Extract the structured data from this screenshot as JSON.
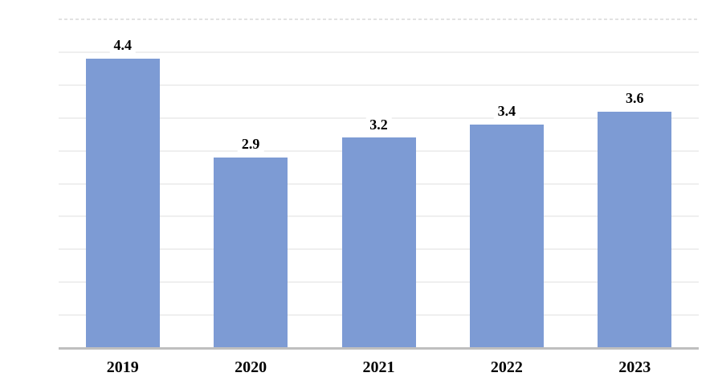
{
  "chart_data": {
    "type": "bar",
    "title": "",
    "xlabel": "",
    "ylabel": "",
    "categories": [
      "2019",
      "2020",
      "2021",
      "2022",
      "2023"
    ],
    "values": [
      4.4,
      2.9,
      3.2,
      3.4,
      3.6
    ],
    "data_labels": [
      "4.4",
      "2.9",
      "3.2",
      "3.4",
      "3.6"
    ],
    "ylim": [
      0,
      5
    ],
    "gridline_step": 0.5,
    "grid": "horizontal",
    "top_gridline_style": "dashed",
    "legend": "none",
    "y_axis_tick_labels_visible": false,
    "colors": {
      "bar_fill": "#7D9BD4",
      "axis_line": "#BFBFBF",
      "gridline": "#EFEFEF",
      "gridline_dashed": "#E2E2E2",
      "label_text": "#000000",
      "background": "#FFFFFF"
    }
  }
}
